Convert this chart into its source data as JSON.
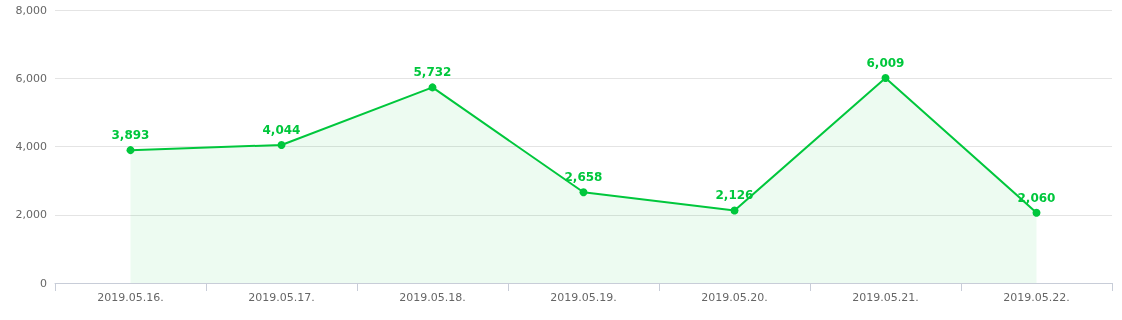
{
  "chart_data": {
    "type": "area",
    "categories": [
      "2019.05.16.",
      "2019.05.17.",
      "2019.05.18.",
      "2019.05.19.",
      "2019.05.20.",
      "2019.05.21.",
      "2019.05.22."
    ],
    "series": [
      {
        "color": "#00c73c",
        "values": [
          3893,
          4044,
          5732,
          2658,
          2126,
          6009,
          2060
        ],
        "value_labels": [
          "3,893",
          "4,044",
          "5,732",
          "2,658",
          "2,126",
          "6,009",
          "2,060"
        ]
      }
    ],
    "ylim": [
      0,
      8000
    ],
    "yticks": [
      {
        "value": 0,
        "label": "0"
      },
      {
        "value": 2000,
        "label": "2,000"
      },
      {
        "value": 4000,
        "label": "4,000"
      },
      {
        "value": 6000,
        "label": "6,000"
      },
      {
        "value": 8000,
        "label": "8,000"
      }
    ],
    "grid": "y",
    "marker": "circle",
    "line_style": "solid"
  }
}
